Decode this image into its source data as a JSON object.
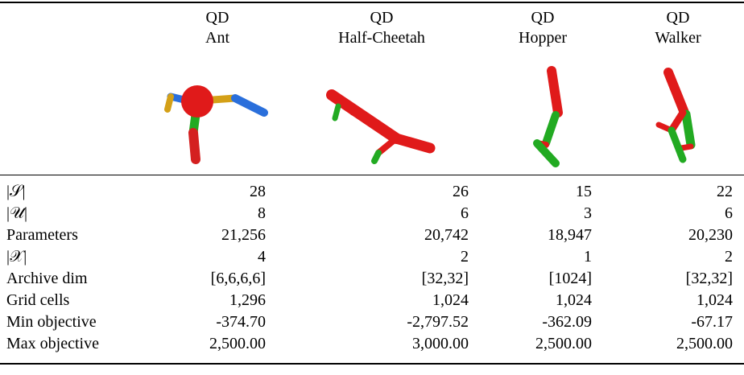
{
  "header": {
    "columns": [
      [
        "QD",
        "Ant"
      ],
      [
        "QD",
        "Half-Cheetah"
      ],
      [
        "QD",
        "Hopper"
      ],
      [
        "QD",
        "Walker"
      ]
    ]
  },
  "table": {
    "rows": [
      [
        "|𝒮|",
        "28",
        "26",
        "15",
        "22"
      ],
      [
        "|𝒰|",
        "8",
        "6",
        "3",
        "6"
      ],
      [
        "Parameters",
        "21,256",
        "20,742",
        "18,947",
        "20,230"
      ],
      [
        "|𝒳|",
        "4",
        "2",
        "1",
        "2"
      ],
      [
        "Archive dim",
        "[6,6,6,6]",
        "[32,32]",
        "[1024]",
        "[32,32]"
      ],
      [
        "Grid cells",
        "1,296",
        "1,024",
        "1,024",
        "1,024"
      ],
      [
        "Min objective",
        "-374.70",
        "-2,797.52",
        "-362.09",
        "-67.17"
      ],
      [
        "Max objective",
        "2,500.00",
        "3,000.00",
        "2,500.00",
        "2,500.00"
      ]
    ]
  }
}
